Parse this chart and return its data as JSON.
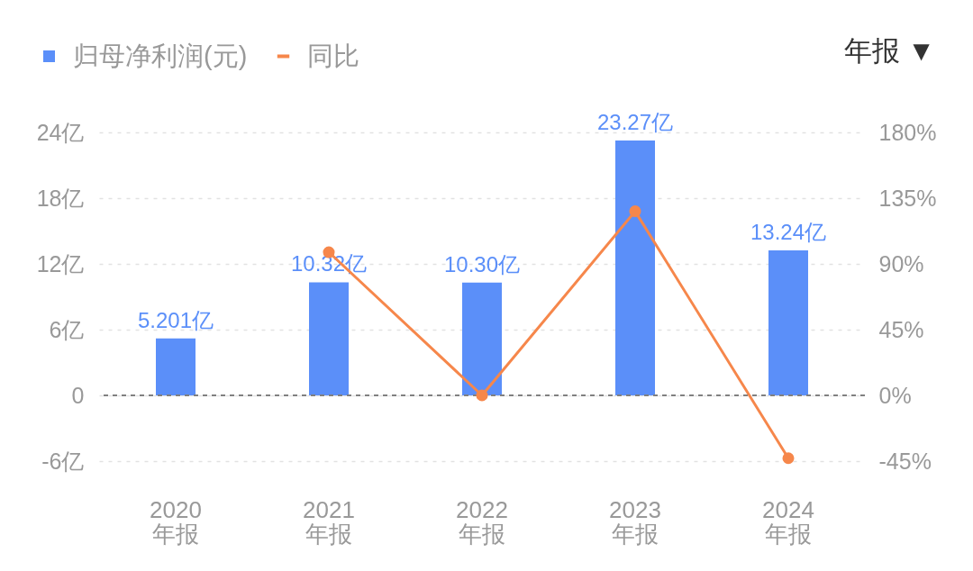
{
  "chart_data": {
    "type": "bar",
    "categories": [
      "2020\n年报",
      "2021\n年报",
      "2022\n年报",
      "2023\n年报",
      "2024\n年报"
    ],
    "series": [
      {
        "name": "归母净利润(元)",
        "color": "#5b8ff9",
        "values": [
          5.201,
          10.32,
          10.3,
          23.27,
          13.24
        ],
        "value_labels": [
          "5.201亿",
          "10.32亿",
          "10.30亿",
          "23.27亿",
          "13.24亿"
        ]
      },
      {
        "name": "同比",
        "type": "line",
        "axis": "y2",
        "color": "#f6874b",
        "marker": "circle",
        "values": [
          null,
          98,
          0,
          126,
          -43
        ]
      }
    ],
    "ylim": [
      -6,
      24
    ],
    "yticks": [
      {
        "value": -6,
        "label": "-6亿"
      },
      0,
      {
        "value": 6,
        "label": "6亿"
      },
      {
        "value": 12,
        "label": "12亿"
      },
      {
        "value": 18,
        "label": "18亿"
      },
      {
        "value": 24,
        "label": "24亿"
      }
    ],
    "y2lim": [
      -45,
      180
    ],
    "y2ticks": [
      {
        "value": -45,
        "label": "-45%"
      },
      {
        "value": 0,
        "label": "0%"
      },
      {
        "value": 45,
        "label": "45%"
      },
      {
        "value": 90,
        "label": "90%"
      },
      {
        "value": 135,
        "label": "135%"
      },
      {
        "value": 180,
        "label": "180%"
      }
    ],
    "ref_lines": [
      {
        "axis": "y",
        "value": 0,
        "color": "#808080",
        "line_style": "dashed"
      }
    ],
    "grid": "y",
    "legend": "top left",
    "annotations": [
      "年报 ▼"
    ]
  }
}
